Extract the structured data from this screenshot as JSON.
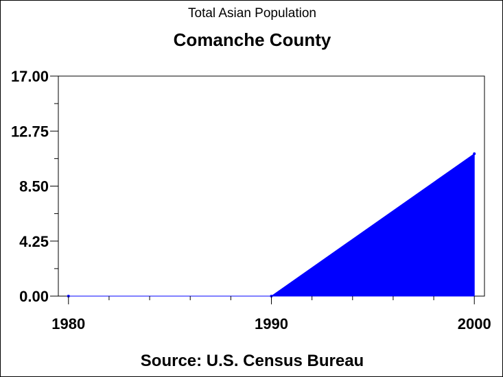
{
  "chart_data": {
    "type": "area",
    "subtitle": "Total Asian Population",
    "title": "Comanche County",
    "footnote": "Source: U.S. Census Bureau",
    "x": [
      1980,
      1990,
      2000
    ],
    "values": [
      0,
      0,
      11
    ],
    "xlim": [
      1979.5,
      2000.5
    ],
    "ylim": [
      0,
      17
    ],
    "yticks": [
      "0.00",
      "4.25",
      "8.50",
      "12.75",
      "17.00"
    ],
    "xticks": [
      "1980",
      "1990",
      "2000"
    ],
    "color": "#0000ff",
    "grid": false
  }
}
